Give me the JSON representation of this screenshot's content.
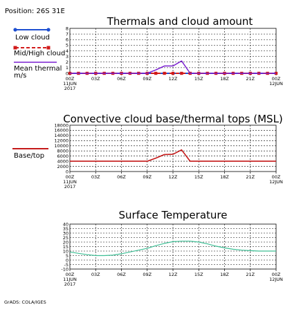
{
  "header": {
    "position": "Position: 26S 31E"
  },
  "footer": {
    "credit": "GrADS: COLA/IGES"
  },
  "x_axis": {
    "labels": [
      "00Z\n11JUN\n2017",
      "03Z",
      "06Z",
      "09Z",
      "12Z",
      "15Z",
      "18Z",
      "21Z",
      "00Z\n12JUN"
    ]
  },
  "colors": {
    "low_cloud": "#1e4fd1",
    "mid_high_cloud": "#d11a1a",
    "mean_thermal": "#7a1fd0",
    "base_top": "#c41818",
    "temperature": "#3dbf95"
  },
  "chart_data": [
    {
      "type": "line",
      "title": "Thermals and cloud amount",
      "ylim": [
        0,
        8
      ],
      "yticks": [
        0,
        1,
        2,
        3,
        4,
        5,
        6,
        7,
        8
      ],
      "x_hours": [
        0,
        1,
        2,
        3,
        4,
        5,
        6,
        7,
        8,
        9,
        10,
        11,
        12,
        13,
        14,
        15,
        16,
        17,
        18,
        19,
        20,
        21,
        22,
        23,
        24
      ],
      "series": [
        {
          "name": "Low cloud",
          "values": [
            0,
            0,
            0,
            0,
            0,
            0,
            0,
            0,
            0,
            0,
            0,
            0,
            0,
            0,
            0,
            0,
            0,
            0,
            0,
            0,
            0,
            0,
            0,
            0,
            0
          ]
        },
        {
          "name": "Mid/High cloud",
          "values": [
            0,
            0,
            0,
            0,
            0,
            0,
            0,
            0,
            0,
            0,
            0,
            0,
            0,
            0,
            0,
            0,
            0,
            0,
            0,
            0,
            0,
            0,
            0,
            0,
            0
          ]
        },
        {
          "name": "Mean thermal m/s",
          "values": [
            0,
            0,
            0,
            0,
            0,
            0,
            0,
            0,
            0,
            0,
            0.6,
            1.3,
            1.3,
            2.2,
            0,
            0,
            0,
            0,
            0,
            0,
            0,
            0,
            0,
            0,
            0
          ]
        }
      ]
    },
    {
      "type": "line",
      "title": "Convective cloud base/thermal tops (MSL)",
      "ylim": [
        0,
        18000
      ],
      "yticks": [
        0,
        2000,
        4000,
        6000,
        8000,
        10000,
        12000,
        14000,
        16000,
        18000
      ],
      "x_hours": [
        0,
        1,
        2,
        3,
        4,
        5,
        6,
        7,
        8,
        9,
        10,
        11,
        12,
        13,
        14,
        15,
        16,
        17,
        18,
        19,
        20,
        21,
        22,
        23,
        24
      ],
      "series": [
        {
          "name": "Base/top",
          "values": [
            4000,
            4000,
            4000,
            4000,
            4000,
            4000,
            4000,
            4000,
            4000,
            4000,
            5200,
            6600,
            6700,
            8400,
            4000,
            4000,
            4000,
            4000,
            4000,
            4000,
            4000,
            4000,
            4000,
            4000,
            4000
          ]
        }
      ]
    },
    {
      "type": "line",
      "title": "Surface Temperature",
      "ylim": [
        -10,
        40
      ],
      "yticks": [
        -10,
        -5,
        0,
        5,
        10,
        15,
        20,
        25,
        30,
        35,
        40
      ],
      "x_hours": [
        0,
        1,
        2,
        3,
        4,
        5,
        6,
        7,
        8,
        9,
        10,
        11,
        12,
        13,
        14,
        15,
        16,
        17,
        18,
        19,
        20,
        21,
        22,
        23,
        24
      ],
      "series": [
        {
          "values": [
            9,
            7.5,
            6,
            5,
            5,
            5.5,
            7,
            9,
            11,
            13,
            16,
            18.5,
            20.5,
            21,
            21,
            20,
            18,
            15.5,
            13.5,
            12,
            11,
            10.5,
            10,
            10,
            10
          ]
        }
      ]
    }
  ]
}
